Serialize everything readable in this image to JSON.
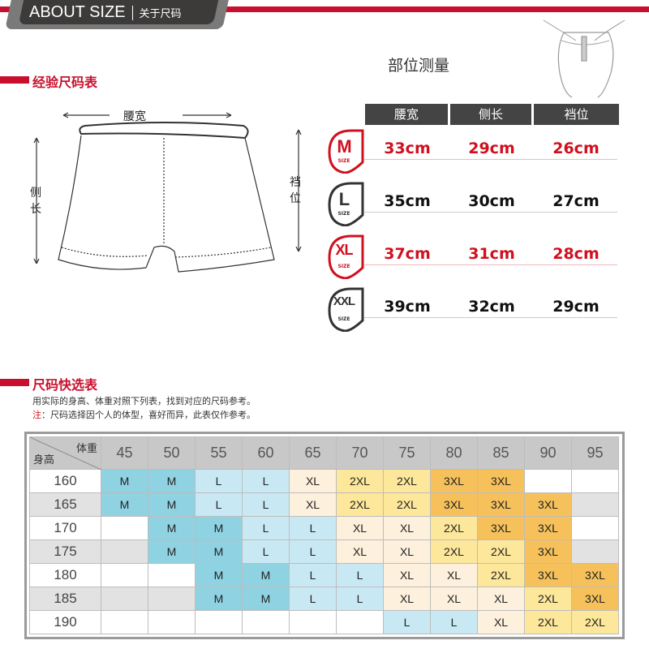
{
  "header": {
    "title_en": "ABOUT SIZE",
    "title_cn": "关于尺码"
  },
  "experience": {
    "title": "经验尺码表",
    "measure_title": "部位测量",
    "diagram_labels": {
      "waist": "腰宽",
      "side": "侧长",
      "rise": "裆位"
    },
    "columns": [
      "腰宽",
      "侧长",
      "裆位"
    ],
    "sizes": [
      {
        "size": "M",
        "sub": "SIZE",
        "values": [
          "33cm",
          "29cm",
          "26cm"
        ],
        "color": "#d0101e"
      },
      {
        "size": "L",
        "sub": "SIZE",
        "values": [
          "35cm",
          "30cm",
          "27cm"
        ],
        "color": "#333333"
      },
      {
        "size": "XL",
        "sub": "SIZE",
        "values": [
          "37cm",
          "31cm",
          "28cm"
        ],
        "color": "#d0101e"
      },
      {
        "size": "XXL",
        "sub": "SIZE",
        "values": [
          "39cm",
          "32cm",
          "29cm"
        ],
        "color": "#333333"
      }
    ]
  },
  "quick": {
    "title": "尺码快选表",
    "desc": "用实际的身高、体重对照下列表，找到对应的尺码参考。",
    "note_label": "注",
    "note": "：尺码选择因个人的体型，喜好而异，此表仅作参考。",
    "corner_weight": "体重",
    "corner_height": "身高",
    "weights": [
      "45",
      "50",
      "55",
      "60",
      "65",
      "70",
      "75",
      "80",
      "85",
      "90",
      "95"
    ],
    "rows": [
      {
        "height": "160",
        "cells": [
          "M",
          "M",
          "L",
          "L",
          "XL",
          "2XL",
          "2XL",
          "3XL",
          "3XL",
          "",
          ""
        ]
      },
      {
        "height": "165",
        "cells": [
          "M",
          "M",
          "L",
          "L",
          "XL",
          "2XL",
          "2XL",
          "3XL",
          "3XL",
          "3XL",
          ""
        ]
      },
      {
        "height": "170",
        "cells": [
          "",
          "M",
          "M",
          "L",
          "L",
          "XL",
          "XL",
          "2XL",
          "3XL",
          "3XL",
          ""
        ]
      },
      {
        "height": "175",
        "cells": [
          "",
          "M",
          "M",
          "L",
          "L",
          "XL",
          "XL",
          "2XL",
          "2XL",
          "3XL",
          ""
        ]
      },
      {
        "height": "180",
        "cells": [
          "",
          "",
          "M",
          "M",
          "L",
          "L",
          "XL",
          "XL",
          "2XL",
          "3XL",
          "3XL"
        ]
      },
      {
        "height": "185",
        "cells": [
          "",
          "",
          "M",
          "M",
          "L",
          "L",
          "XL",
          "XL",
          "XL",
          "2XL",
          "3XL"
        ]
      },
      {
        "height": "190",
        "cells": [
          "",
          "",
          "",
          "",
          "",
          "",
          "L",
          "L",
          "XL",
          "2XL",
          "2XL"
        ]
      }
    ],
    "size_colors": {
      "M": "#8fd2e2",
      "L": "#c8e9f3",
      "XL": "#fdf0dc",
      "2XL": "#fde79a",
      "3XL": "#f6c15b"
    }
  }
}
